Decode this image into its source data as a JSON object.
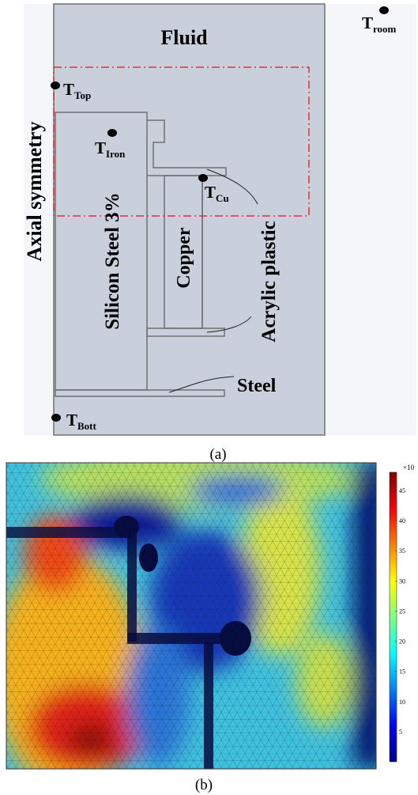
{
  "panel_a": {
    "caption": "(a)",
    "labels": {
      "fluid": "Fluid",
      "axial_symmetry": "Axial symmetry",
      "silicon_steel": "Silicon Steel 3%",
      "copper": "Copper",
      "acrylic_plastic": "Acrylic plastic",
      "steel": "Steel"
    },
    "sensors": [
      {
        "name": "T",
        "sub": "room"
      },
      {
        "name": "T",
        "sub": "Top"
      },
      {
        "name": "T",
        "sub": "Iron"
      },
      {
        "name": "T",
        "sub": "Cu"
      },
      {
        "name": "T",
        "sub": "Bott"
      }
    ],
    "colors": {
      "region_fill": "#c9d0db",
      "outline": "#707070",
      "roi_box": "#e0303a",
      "sensor_dot": "#000000"
    }
  },
  "panel_b": {
    "caption": "(b)",
    "colorbar": {
      "exponent": "×10",
      "ticks": [
        "45",
        "40",
        "35",
        "30",
        "25",
        "20",
        "15",
        "10",
        "5"
      ],
      "range": [
        0,
        48
      ],
      "colormap": "jet"
    }
  }
}
